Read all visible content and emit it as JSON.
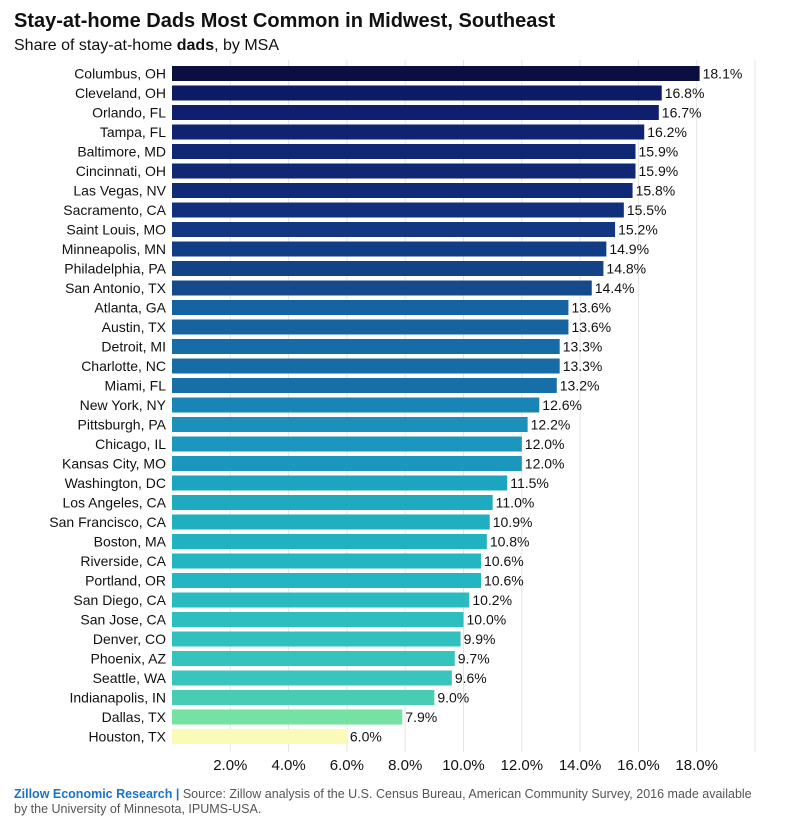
{
  "header": {
    "title": "Stay-at-home Dads Most Common in Midwest, Southeast",
    "subtitle_prefix": "Share of stay-at-home ",
    "subtitle_bold": "dads",
    "subtitle_suffix": ", by MSA"
  },
  "footer": {
    "brand": "Zillow Economic Research |",
    "source": " Source: Zillow analysis of the U.S. Census Bureau, American Community Survey, 2016 made available by the University of Minnesota, IPUMS-USA."
  },
  "chart_data": {
    "type": "bar",
    "orientation": "horizontal",
    "title": "Stay-at-home Dads Most Common in Midwest, Southeast",
    "subtitle": "Share of stay-at-home dads, by MSA",
    "xlim": [
      0,
      20
    ],
    "x_ticks": [
      2,
      4,
      6,
      8,
      10,
      12,
      14,
      16,
      18
    ],
    "x_tick_labels": [
      "2.0%",
      "4.0%",
      "6.0%",
      "8.0%",
      "10.0%",
      "12.0%",
      "14.0%",
      "16.0%",
      "18.0%"
    ],
    "grid": true,
    "categories": [
      "Columbus, OH",
      "Cleveland, OH",
      "Orlando, FL",
      "Tampa, FL",
      "Baltimore, MD",
      "Cincinnati, OH",
      "Las Vegas, NV",
      "Sacramento, CA",
      "Saint Louis, MO",
      "Minneapolis, MN",
      "Philadelphia, PA",
      "San Antonio, TX",
      "Atlanta, GA",
      "Austin, TX",
      "Detroit, MI",
      "Charlotte, NC",
      "Miami, FL",
      "New York, NY",
      "Pittsburgh, PA",
      "Chicago, IL",
      "Kansas City, MO",
      "Washington, DC",
      "Los Angeles, CA",
      "San Francisco, CA",
      "Boston, MA",
      "Riverside, CA",
      "Portland, OR",
      "San Diego, CA",
      "San Jose, CA",
      "Denver, CO",
      "Phoenix, AZ",
      "Seattle, WA",
      "Indianapolis, IN",
      "Dallas, TX",
      "Houston, TX"
    ],
    "values": [
      18.1,
      16.8,
      16.7,
      16.2,
      15.9,
      15.9,
      15.8,
      15.5,
      15.2,
      14.9,
      14.8,
      14.4,
      13.6,
      13.6,
      13.3,
      13.3,
      13.2,
      12.6,
      12.2,
      12.0,
      12.0,
      11.5,
      11.0,
      10.9,
      10.8,
      10.6,
      10.6,
      10.2,
      10.0,
      9.9,
      9.7,
      9.6,
      9.0,
      7.9,
      6.0
    ],
    "value_labels": [
      "18.1%",
      "16.8%",
      "16.7%",
      "16.2%",
      "15.9%",
      "15.9%",
      "15.8%",
      "15.5%",
      "15.2%",
      "14.9%",
      "14.8%",
      "14.4%",
      "13.6%",
      "13.6%",
      "13.3%",
      "13.3%",
      "13.2%",
      "12.6%",
      "12.2%",
      "12.0%",
      "12.0%",
      "11.5%",
      "11.0%",
      "10.9%",
      "10.8%",
      "10.6%",
      "10.6%",
      "10.2%",
      "10.0%",
      "9.9%",
      "9.7%",
      "9.6%",
      "9.0%",
      "7.9%",
      "6.0%"
    ],
    "colors": [
      "#0b0f3f",
      "#0d1a66",
      "#0f1f6e",
      "#0f2372",
      "#102774",
      "#102774",
      "#102a78",
      "#112f7c",
      "#12367f",
      "#123d84",
      "#134287",
      "#14498c",
      "#1563a0",
      "#1563a0",
      "#166ca6",
      "#166ca6",
      "#176fa8",
      "#1985b6",
      "#1a90bb",
      "#1b97bd",
      "#1b97bd",
      "#1ca4c0",
      "#1eabc0",
      "#1fafc1",
      "#20b2c1",
      "#23b6c1",
      "#23b6c1",
      "#29bbc0",
      "#2dbfbf",
      "#30c1be",
      "#35c4bc",
      "#38c5bb",
      "#48ccb3",
      "#75e2a4",
      "#fafbb6"
    ]
  }
}
